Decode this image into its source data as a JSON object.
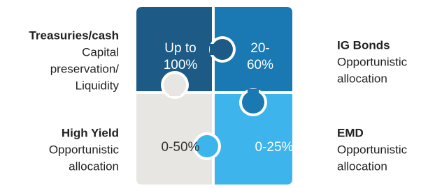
{
  "pieces": [
    {
      "name": "Treasuries/cash",
      "description": [
        "Capital",
        "preservation/",
        "Liquidity"
      ],
      "allocation": [
        "Up to",
        "100%"
      ]
    },
    {
      "name": "IG Bonds",
      "description": [
        "Opportunistic",
        "allocation"
      ],
      "allocation": [
        "20-",
        "60%"
      ]
    },
    {
      "name": "High Yield",
      "description": [
        "Opportunistic",
        "allocation"
      ],
      "allocation": [
        "0-50%"
      ]
    },
    {
      "name": "EMD",
      "description": [
        "Opportunistic",
        "allocation"
      ],
      "allocation": [
        "0-25%"
      ]
    }
  ]
}
